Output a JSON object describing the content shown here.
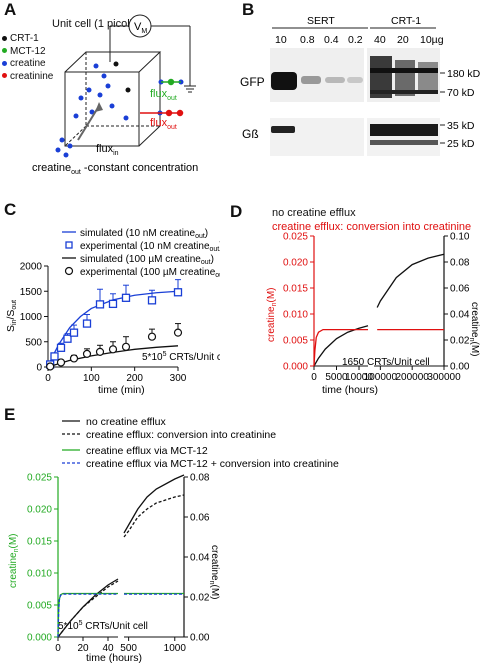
{
  "figure": {
    "panels": {
      "A": {
        "letter": "A",
        "title": "Unit cell (1 picoliter)",
        "legend": [
          {
            "label": "CRT-1",
            "color": "#111111"
          },
          {
            "label": "MCT-12",
            "color": "#22aa22"
          },
          {
            "label": "creatine",
            "color": "#1a3fd6"
          },
          {
            "label": "creatinine",
            "color": "#e01010"
          }
        ],
        "voltmeter": "V",
        "voltmeter_sub": "M",
        "flux_out_label": "flux",
        "flux_out_sub": "out",
        "flux_in_label": "flux",
        "flux_in_sub": "in",
        "caption_main": "creatine",
        "caption_sub": "out",
        "caption_rest": " -constant concentration"
      },
      "B": {
        "letter": "B",
        "group1": "SERT",
        "group2": "CRT-1",
        "lanes": [
          "10",
          "0.8",
          "0.4",
          "0.2",
          "40",
          "20",
          "10µg"
        ],
        "row1_label": "GFP",
        "row2_label": "Gß",
        "markers_top": [
          "180 kD",
          "70 kD"
        ],
        "markers_bottom": [
          "35 kD",
          "25 kD"
        ]
      },
      "C": {
        "letter": "C",
        "ylabel_main": "S",
        "ylabel_sub1": "in",
        "ylabel_sep": "/S",
        "ylabel_sub2": "out",
        "xlabel": "time (min)",
        "legend": [
          {
            "text": "simulated (10 nM creatine",
            "sub": "out",
            "end": ")",
            "kind": "line",
            "color": "#1a3fd6"
          },
          {
            "text": "experimental (10 nM creatine",
            "sub": "out",
            "end": ")",
            "kind": "square",
            "color": "#1a3fd6"
          },
          {
            "text": "simulated (100 µM creatine",
            "sub": "out",
            "end": ")",
            "kind": "line",
            "color": "#111111"
          },
          {
            "text": "experimental (100 µM creatine",
            "sub": "out",
            "end": ")",
            "kind": "circle",
            "color": "#111111"
          }
        ],
        "annotation_main": "5*10",
        "annotation_sup": "5",
        "annotation_rest": " CRTs/Unit cell",
        "xticks": [
          "0",
          "100",
          "200",
          "300"
        ],
        "yticks": [
          "0",
          "500",
          "1000",
          "1500",
          "2000"
        ]
      },
      "D": {
        "letter": "D",
        "legend1": "no creatine efflux",
        "legend2": "creatine efflux: conversion into creatinine",
        "ylabel_left_main": "creatine",
        "ylabel_left_sub": "n",
        "ylabel_left_end": "(M)",
        "ylabel_right_main": "creatine",
        "ylabel_right_sub": "n",
        "ylabel_right_end": "(M)",
        "annotation": "1650 CRTs/Unit cell",
        "xlabel": "time (hours)",
        "xticks_left": [
          "0",
          "5000",
          "10000"
        ],
        "xticks_right": [
          "100000",
          "200000",
          "300000"
        ],
        "yticks_left": [
          "0.000",
          "0.005",
          "0.010",
          "0.015",
          "0.020",
          "0.025"
        ],
        "yticks_right": [
          "0.00",
          "0.02",
          "0.04",
          "0.06",
          "0.08",
          "0.10"
        ]
      },
      "E": {
        "letter": "E",
        "legend": [
          {
            "text": "no creatine efflux",
            "color": "#111111",
            "dash": false
          },
          {
            "text": "creatine efflux: conversion into creatinine",
            "color": "#111111",
            "dash": true
          },
          {
            "text": "creatine efflux via MCT-12",
            "color": "#22aa22",
            "dash": false
          },
          {
            "text": "creatine efflux via MCT-12 + conversion into creatinine",
            "color": "#1a3fd6",
            "dash": true
          }
        ],
        "ylabel_left_main": "creatine",
        "ylabel_left_sub": "n",
        "ylabel_left_end": "(M)",
        "ylabel_right_main": "creatine",
        "ylabel_right_sub": "n",
        "ylabel_right_end": "(M)",
        "annotation_main": "5*10",
        "annotation_sup": "5",
        "annotation_rest": " CRTs/Unit cell",
        "xlabel": "time (hours)",
        "xticks_left": [
          "0",
          "20",
          "40"
        ],
        "xticks_right": [
          "500",
          "1000"
        ],
        "yticks_left": [
          "0.000",
          "0.005",
          "0.010",
          "0.015",
          "0.020",
          "0.025"
        ],
        "yticks_right": [
          "0.00",
          "0.02",
          "0.04",
          "0.06",
          "0.08"
        ]
      }
    }
  },
  "chart_data": [
    {
      "type": "line",
      "panel": "C",
      "xlabel": "time (min)",
      "ylabel": "Sin/Sout",
      "xlim": [
        0,
        300
      ],
      "ylim": [
        0,
        2000
      ],
      "series": [
        {
          "name": "simulated (10 nM creatineout)",
          "kind": "line",
          "x": [
            0,
            10,
            25,
            50,
            75,
            100,
            150,
            200,
            250,
            300
          ],
          "y": [
            0,
            200,
            450,
            780,
            1000,
            1160,
            1330,
            1420,
            1470,
            1500
          ]
        },
        {
          "name": "experimental (10 nM creatineout)",
          "kind": "square",
          "x": [
            5,
            15,
            30,
            45,
            60,
            90,
            120,
            150,
            180,
            240,
            300
          ],
          "y": [
            50,
            210,
            380,
            560,
            680,
            860,
            1240,
            1250,
            1370,
            1320,
            1480
          ],
          "err": [
            30,
            60,
            90,
            100,
            150,
            180,
            300,
            200,
            250,
            200,
            250
          ]
        },
        {
          "name": "simulated (100 µM creatineout)",
          "kind": "line",
          "x": [
            0,
            50,
            100,
            150,
            200,
            250,
            300
          ],
          "y": [
            0,
            130,
            220,
            290,
            350,
            390,
            420
          ]
        },
        {
          "name": "experimental (100 µM creatineout)",
          "kind": "circle",
          "x": [
            5,
            30,
            60,
            90,
            120,
            150,
            180,
            240,
            300
          ],
          "y": [
            10,
            90,
            170,
            260,
            300,
            350,
            400,
            600,
            680
          ],
          "err": [
            10,
            40,
            60,
            100,
            130,
            150,
            200,
            150,
            180
          ]
        }
      ]
    },
    {
      "type": "line",
      "panel": "D",
      "xlabel": "time (hours)",
      "ylabel": "creatinen (M)",
      "x_break": [
        12000,
        80000
      ],
      "ylim_left": [
        0,
        0.025
      ],
      "ylim_right": [
        0,
        0.1
      ],
      "series": [
        {
          "name": "no creatine efflux",
          "color": "#111111",
          "axis": "right",
          "x": [
            0,
            1000,
            2500,
            5000,
            7500,
            10000,
            12000,
            90000,
            100000,
            150000,
            200000,
            250000,
            300000
          ],
          "y": [
            0,
            0.006,
            0.013,
            0.021,
            0.026,
            0.029,
            0.031,
            0.045,
            0.05,
            0.068,
            0.078,
            0.083,
            0.086
          ]
        },
        {
          "name": "creatine efflux: conversion into creatinine",
          "color": "#e01010",
          "axis": "left",
          "x": [
            0,
            200,
            500,
            1000,
            2000,
            5000,
            10000,
            12000,
            90000,
            300000
          ],
          "y": [
            0,
            0.003,
            0.0055,
            0.0065,
            0.007,
            0.007,
            0.007,
            0.007,
            0.007,
            0.007
          ]
        }
      ]
    },
    {
      "type": "line",
      "panel": "E",
      "xlabel": "time (hours)",
      "ylabel": "creatinen (M)",
      "x_break": [
        48,
        450
      ],
      "ylim_left": [
        0,
        0.025
      ],
      "ylim_right": [
        0,
        0.08
      ],
      "series": [
        {
          "name": "no creatine efflux",
          "color": "#111111",
          "dash": false,
          "axis": "right",
          "x": [
            0,
            5,
            10,
            20,
            30,
            40,
            48,
            450,
            500,
            600,
            700,
            800,
            1000,
            1100
          ],
          "y": [
            0,
            0.004,
            0.008,
            0.015,
            0.021,
            0.026,
            0.029,
            0.052,
            0.056,
            0.064,
            0.07,
            0.074,
            0.079,
            0.081
          ]
        },
        {
          "name": "creatine efflux: conversion into creatinine",
          "color": "#111111",
          "dash": true,
          "axis": "right",
          "x": [
            0,
            5,
            10,
            20,
            30,
            40,
            48,
            450,
            500,
            600,
            700,
            800,
            1000,
            1100
          ],
          "y": [
            0,
            0.004,
            0.008,
            0.015,
            0.02,
            0.025,
            0.028,
            0.05,
            0.053,
            0.06,
            0.064,
            0.067,
            0.07,
            0.071
          ]
        },
        {
          "name": "creatine efflux via MCT-12",
          "color": "#22aa22",
          "dash": false,
          "axis": "left",
          "x": [
            0,
            0.5,
            1,
            2,
            4,
            48,
            450,
            1100
          ],
          "y": [
            0,
            0.004,
            0.0058,
            0.0066,
            0.0068,
            0.0068,
            0.0068,
            0.0068
          ]
        },
        {
          "name": "creatine efflux via MCT-12 + conversion into creatinine",
          "color": "#1a3fd6",
          "dash": true,
          "axis": "left",
          "x": [
            0,
            0.5,
            1,
            2,
            4,
            48,
            450,
            1100
          ],
          "y": [
            0,
            0.004,
            0.0057,
            0.0065,
            0.0067,
            0.0067,
            0.0067,
            0.0067
          ]
        }
      ]
    }
  ]
}
